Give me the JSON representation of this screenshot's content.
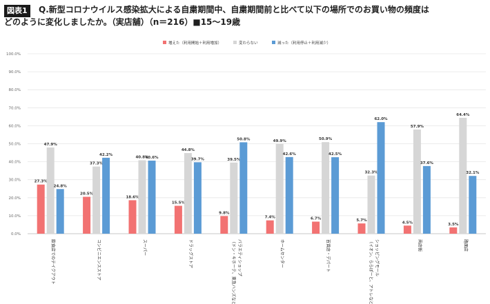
{
  "header": {
    "badge": "図表1",
    "title_line1": "Q.新型コロナウイルス感染拡大による自粛期間中、自粛期間前と比べて以下の場所でのお買い物の頻度は",
    "title_line2": "どのように変化しましたか。（実店舗）（n＝216）■15〜19歳"
  },
  "colors": {
    "increased": "#f27272",
    "unchanged": "#d6d6d6",
    "decreased": "#5b9bd5"
  },
  "chart_data": {
    "type": "bar",
    "categories": [
      "飲食店でのテイクアウト",
      "コンビニエンスストア",
      "スーパー",
      "ドラッグストア",
      "バラエティショップ（ドン・キホーテ、東急ハンズなど）",
      "ホームセンター",
      "百貨店・デパート",
      "ショッピングモール（イオン、ららぽーと、アトレなど）",
      "商店街",
      "路面店"
    ],
    "category_lines": [
      [
        "飲食店でのテイクアウト"
      ],
      [
        "コンビニエンスストア"
      ],
      [
        "スーパー"
      ],
      [
        "ドラッグストア"
      ],
      [
        "バラエティショップ",
        "（ドン・キホーテ、東急ハンズなど）"
      ],
      [
        "ホームセンター"
      ],
      [
        "百貨店・デパート"
      ],
      [
        "ショッピングモール",
        "（イオン、ららぽーと、アトレなど）"
      ],
      [
        "商店街"
      ],
      [
        "路面店"
      ]
    ],
    "series": [
      {
        "name": "増えた（利用開始＋利用増加）",
        "values": [
          27.3,
          20.5,
          18.6,
          15.5,
          9.8,
          7.4,
          6.7,
          5.7,
          4.5,
          3.5
        ]
      },
      {
        "name": "変わらない",
        "values": [
          47.9,
          37.3,
          40.8,
          44.8,
          39.5,
          49.9,
          50.9,
          32.3,
          57.9,
          64.4
        ]
      },
      {
        "name": "減った（利用停止＋利用減少）",
        "values": [
          24.8,
          42.2,
          40.6,
          39.7,
          50.8,
          42.6,
          42.5,
          62.0,
          37.6,
          32.1
        ]
      }
    ],
    "ylim": [
      0,
      100
    ],
    "yticks": [
      "0.0%",
      "10.0%",
      "20.0%",
      "30.0%",
      "40.0%",
      "50.0%",
      "60.0%",
      "70.0%",
      "80.0%",
      "90.0%",
      "100.0%"
    ],
    "grid": true,
    "legend": "top-center"
  }
}
